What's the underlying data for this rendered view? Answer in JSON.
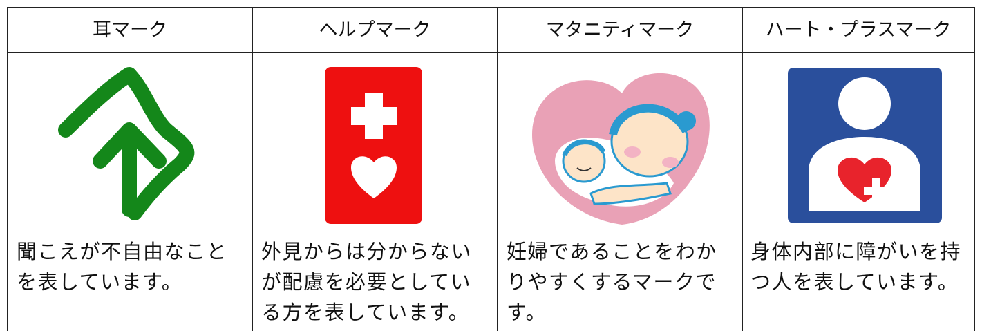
{
  "table": {
    "headers": [
      "耳マーク",
      "ヘルプマーク",
      "マタニティマーク",
      "ハート・プラスマーク"
    ],
    "descriptions": [
      [
        "聞こえが不自由なこと",
        "を表しています。"
      ],
      [
        "外見からは分からない",
        "が配慮を必要としてい",
        "る方を表しています。"
      ],
      [
        "妊婦であることをわか",
        "りやすくするマークで",
        "す。"
      ],
      [
        "身体内部に障がいを持",
        "つ人を表しています。"
      ]
    ]
  }
}
